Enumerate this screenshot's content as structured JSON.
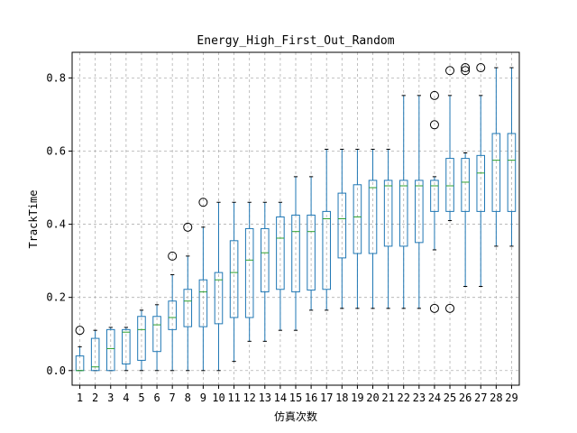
{
  "chart_data": {
    "type": "box",
    "title": "Energy_High_First_Out_Random",
    "xlabel": "仿真次数",
    "ylabel": "TrackTime",
    "ylim": [
      -0.04,
      0.87
    ],
    "yticks": [
      0.0,
      0.2,
      0.4,
      0.6,
      0.8
    ],
    "ytick_labels": [
      "0.0",
      "0.2",
      "0.4",
      "0.6",
      "0.8"
    ],
    "grid": true,
    "box_color": "#1f77b4",
    "median_color": "#2ca02c",
    "grid_color": "#b0b0b0",
    "categories": [
      "1",
      "2",
      "3",
      "4",
      "5",
      "6",
      "7",
      "8",
      "9",
      "10",
      "11",
      "12",
      "13",
      "14",
      "15",
      "16",
      "17",
      "18",
      "19",
      "20",
      "21",
      "22",
      "23",
      "24",
      "25",
      "26",
      "27",
      "28",
      "29"
    ],
    "boxes": [
      {
        "whislo": 0.0,
        "q1": 0.0,
        "med": 0.0,
        "q3": 0.04,
        "whishi": 0.065,
        "fliers": [
          0.11
        ]
      },
      {
        "whislo": 0.0,
        "q1": 0.0,
        "med": 0.01,
        "q3": 0.088,
        "whishi": 0.11,
        "fliers": []
      },
      {
        "whislo": 0.0,
        "q1": 0.0,
        "med": 0.06,
        "q3": 0.112,
        "whishi": 0.118,
        "fliers": []
      },
      {
        "whislo": 0.0,
        "q1": 0.018,
        "med": 0.105,
        "q3": 0.112,
        "whishi": 0.118,
        "fliers": []
      },
      {
        "whislo": 0.0,
        "q1": 0.028,
        "med": 0.112,
        "q3": 0.148,
        "whishi": 0.165,
        "fliers": []
      },
      {
        "whislo": 0.0,
        "q1": 0.052,
        "med": 0.125,
        "q3": 0.148,
        "whishi": 0.18,
        "fliers": []
      },
      {
        "whislo": 0.0,
        "q1": 0.112,
        "med": 0.145,
        "q3": 0.19,
        "whishi": 0.262,
        "fliers": [
          0.313
        ]
      },
      {
        "whislo": 0.0,
        "q1": 0.12,
        "med": 0.19,
        "q3": 0.222,
        "whishi": 0.313,
        "fliers": [
          0.392
        ]
      },
      {
        "whislo": 0.0,
        "q1": 0.12,
        "med": 0.215,
        "q3": 0.248,
        "whishi": 0.392,
        "fliers": [
          0.46
        ]
      },
      {
        "whislo": 0.0,
        "q1": 0.128,
        "med": 0.248,
        "q3": 0.268,
        "whishi": 0.46,
        "fliers": []
      },
      {
        "whislo": 0.025,
        "q1": 0.145,
        "med": 0.268,
        "q3": 0.355,
        "whishi": 0.46,
        "fliers": []
      },
      {
        "whislo": 0.08,
        "q1": 0.145,
        "med": 0.302,
        "q3": 0.388,
        "whishi": 0.46,
        "fliers": []
      },
      {
        "whislo": 0.08,
        "q1": 0.215,
        "med": 0.322,
        "q3": 0.388,
        "whishi": 0.46,
        "fliers": []
      },
      {
        "whislo": 0.11,
        "q1": 0.222,
        "med": 0.362,
        "q3": 0.42,
        "whishi": 0.46,
        "fliers": []
      },
      {
        "whislo": 0.11,
        "q1": 0.215,
        "med": 0.38,
        "q3": 0.425,
        "whishi": 0.53,
        "fliers": []
      },
      {
        "whislo": 0.165,
        "q1": 0.22,
        "med": 0.38,
        "q3": 0.425,
        "whishi": 0.53,
        "fliers": []
      },
      {
        "whislo": 0.165,
        "q1": 0.222,
        "med": 0.415,
        "q3": 0.435,
        "whishi": 0.605,
        "fliers": []
      },
      {
        "whislo": 0.17,
        "q1": 0.308,
        "med": 0.415,
        "q3": 0.485,
        "whishi": 0.605,
        "fliers": []
      },
      {
        "whislo": 0.17,
        "q1": 0.32,
        "med": 0.42,
        "q3": 0.508,
        "whishi": 0.605,
        "fliers": []
      },
      {
        "whislo": 0.17,
        "q1": 0.32,
        "med": 0.5,
        "q3": 0.52,
        "whishi": 0.605,
        "fliers": []
      },
      {
        "whislo": 0.17,
        "q1": 0.34,
        "med": 0.505,
        "q3": 0.52,
        "whishi": 0.605,
        "fliers": []
      },
      {
        "whislo": 0.17,
        "q1": 0.34,
        "med": 0.505,
        "q3": 0.52,
        "whishi": 0.752,
        "fliers": []
      },
      {
        "whislo": 0.17,
        "q1": 0.35,
        "med": 0.505,
        "q3": 0.52,
        "whishi": 0.752,
        "fliers": []
      },
      {
        "whislo": 0.33,
        "q1": 0.435,
        "med": 0.505,
        "q3": 0.52,
        "whishi": 0.53,
        "fliers": [
          0.17,
          0.672,
          0.752
        ]
      },
      {
        "whislo": 0.41,
        "q1": 0.435,
        "med": 0.505,
        "q3": 0.58,
        "whishi": 0.752,
        "fliers": [
          0.17,
          0.82
        ]
      },
      {
        "whislo": 0.23,
        "q1": 0.435,
        "med": 0.515,
        "q3": 0.58,
        "whishi": 0.595,
        "fliers": [
          0.82,
          0.828
        ]
      },
      {
        "whislo": 0.23,
        "q1": 0.435,
        "med": 0.54,
        "q3": 0.588,
        "whishi": 0.752,
        "fliers": [
          0.828
        ]
      },
      {
        "whislo": 0.34,
        "q1": 0.435,
        "med": 0.575,
        "q3": 0.648,
        "whishi": 0.828,
        "fliers": []
      },
      {
        "whislo": 0.34,
        "q1": 0.435,
        "med": 0.575,
        "q3": 0.648,
        "whishi": 0.828,
        "fliers": []
      }
    ]
  }
}
